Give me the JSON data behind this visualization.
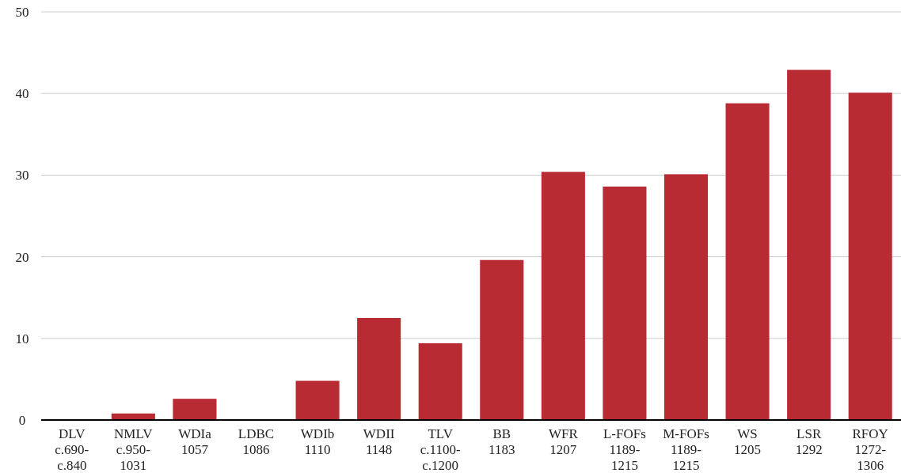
{
  "chart_data": {
    "type": "bar",
    "categories": [
      "DLV\nc.690-\nc.840",
      "NMLV\nc.950-\n1031",
      "WDIa\n1057",
      "LDBC\n1086",
      "WDIb\n1110",
      "WDII\n1148",
      "TLV\nc.1100-\nc.1200",
      "BB\n1183",
      "WFR\n1207",
      "L-FOFs\n1189-\n1215",
      "M-FOFs\n1189-\n1215",
      "WS\n1205",
      "LSR\n1292",
      "RFOY\n1272-\n1306"
    ],
    "values": [
      0,
      0.8,
      2.6,
      0,
      4.8,
      12.5,
      9.4,
      19.6,
      30.4,
      28.6,
      30.1,
      38.8,
      42.9,
      40.1
    ],
    "color": "#b92b33",
    "ylim": [
      0,
      50
    ],
    "yticks": [
      0,
      10,
      20,
      30,
      40,
      50
    ],
    "grid": "y"
  }
}
